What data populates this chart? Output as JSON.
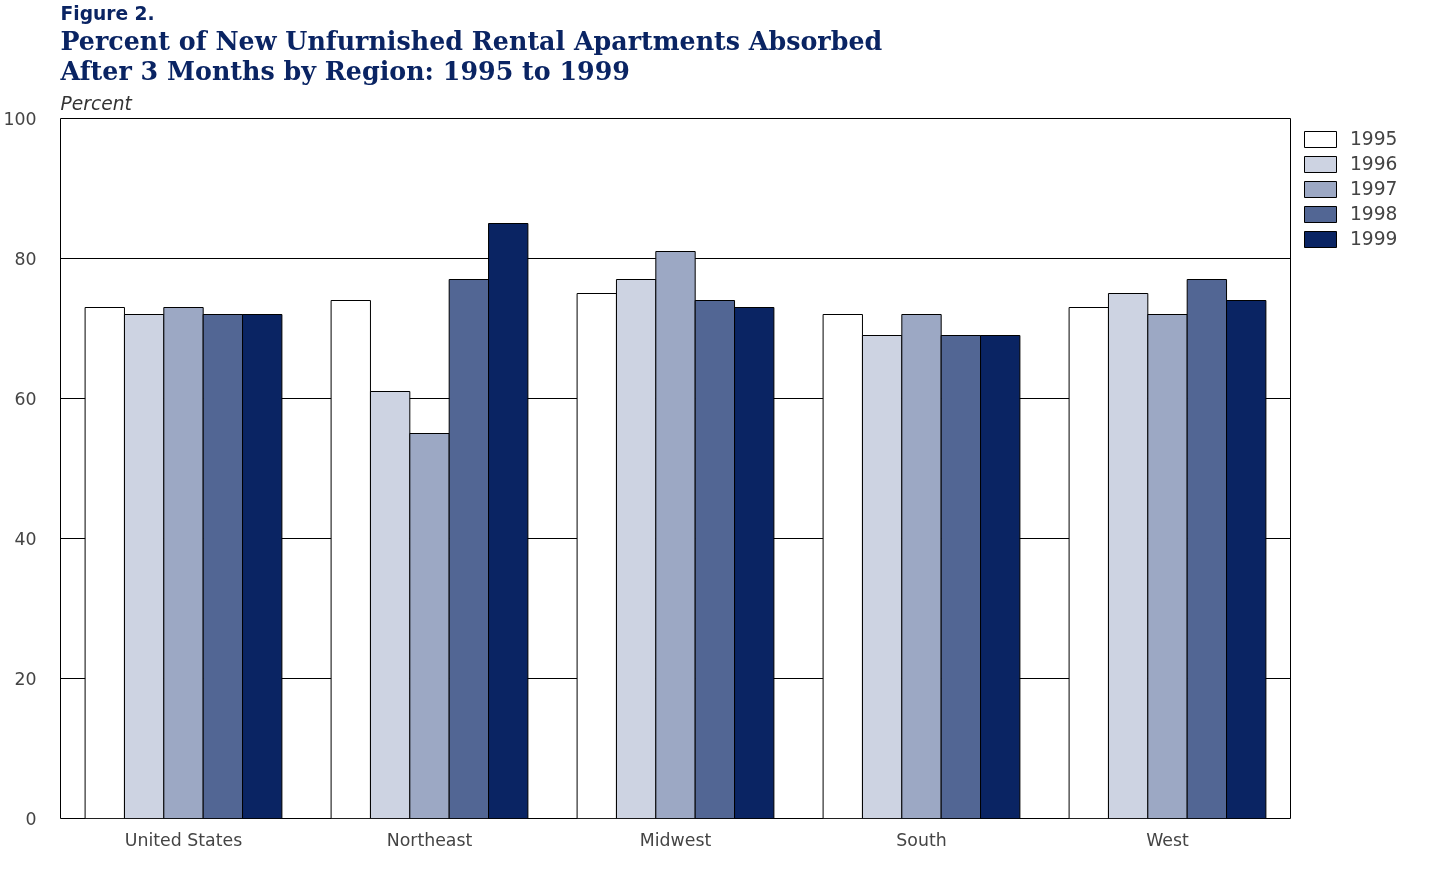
{
  "chart_data": {
    "type": "bar",
    "subtitle": "Figure 2.",
    "title": "Percent of New Unfurnished Rental Apartments Absorbed\nAfter 3 Months by Region:  1995 to 1999",
    "ylabel": "Percent",
    "categories": [
      "United States",
      "Northeast",
      "Midwest",
      "South",
      "West"
    ],
    "series": [
      {
        "name": "1995",
        "color": "#ffffff",
        "values": [
          73,
          74,
          75,
          72,
          73
        ]
      },
      {
        "name": "1996",
        "color": "#cdd3e2",
        "values": [
          72,
          61,
          77,
          69,
          75
        ]
      },
      {
        "name": "1997",
        "color": "#9ca8c4",
        "values": [
          73,
          55,
          81,
          72,
          72
        ]
      },
      {
        "name": "1998",
        "color": "#526694",
        "values": [
          72,
          77,
          74,
          69,
          77
        ]
      },
      {
        "name": "1999",
        "color": "#0a2463",
        "values": [
          72,
          85,
          73,
          69,
          74
        ]
      }
    ],
    "ylim": [
      0,
      100
    ],
    "yticks": [
      0,
      20,
      40,
      60,
      80,
      100
    ],
    "grid": "y",
    "legend": "top right"
  }
}
